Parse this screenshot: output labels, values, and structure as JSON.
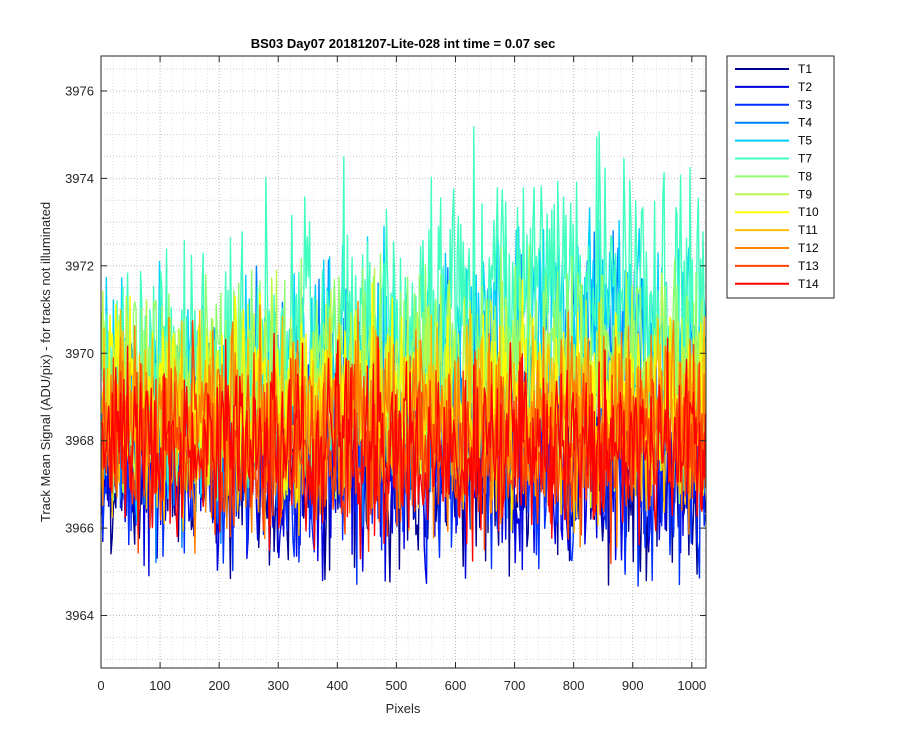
{
  "chart_data": {
    "type": "line",
    "title": "BS03 Day07 20181207-Lite-028 int time = 0.07 sec",
    "xlabel": "Pixels",
    "ylabel": "Track Mean Signal (ADU/pix) - for tracks not illuminated",
    "xlim": [
      0,
      1024
    ],
    "ylim": [
      3962.8,
      3976.8
    ],
    "xticks": [
      0,
      100,
      200,
      300,
      400,
      500,
      600,
      700,
      800,
      900,
      1000
    ],
    "yticks": [
      3964,
      3966,
      3968,
      3970,
      3972,
      3974,
      3976
    ],
    "grid": "major and minor, dotted",
    "legend_position": "outside-right-top",
    "series": [
      {
        "name": "T1",
        "color": "#00008f",
        "mean_profile": {
          "x": [
            0,
            256,
            512,
            768,
            1024
          ],
          "y": [
            3967.4,
            3967.4,
            3967.3,
            3967.2,
            3967.2
          ]
        },
        "noise_amplitude": 1.1
      },
      {
        "name": "T2",
        "color": "#0000df",
        "mean_profile": {
          "x": [
            0,
            256,
            512,
            768,
            1024
          ],
          "y": [
            3967.5,
            3967.5,
            3967.4,
            3967.3,
            3967.3
          ]
        },
        "noise_amplitude": 1.1
      },
      {
        "name": "T3",
        "color": "#0030ff",
        "mean_profile": {
          "x": [
            0,
            256,
            512,
            768,
            1024
          ],
          "y": [
            3967.6,
            3967.6,
            3967.6,
            3967.5,
            3967.5
          ]
        },
        "noise_amplitude": 1.1
      },
      {
        "name": "T4",
        "color": "#0080ff",
        "mean_profile": {
          "x": [
            0,
            256,
            512,
            768,
            1024
          ],
          "y": [
            3968.3,
            3968.8,
            3969.1,
            3969.8,
            3969.5
          ]
        },
        "noise_amplitude": 1.2
      },
      {
        "name": "T5",
        "color": "#00d0ff",
        "mean_profile": {
          "x": [
            0,
            256,
            512,
            768,
            1024
          ],
          "y": [
            3968.6,
            3969.3,
            3969.8,
            3970.7,
            3970.2
          ]
        },
        "noise_amplitude": 1.2
      },
      {
        "name": "T7",
        "color": "#40ffbf",
        "mean_profile": {
          "x": [
            0,
            256,
            512,
            768,
            1024
          ],
          "y": [
            3969.0,
            3969.9,
            3970.6,
            3971.8,
            3971.0
          ]
        },
        "noise_amplitude": 1.5
      },
      {
        "name": "T8",
        "color": "#90ff6f",
        "mean_profile": {
          "x": [
            0,
            256,
            512,
            768,
            1024
          ],
          "y": [
            3968.9,
            3969.3,
            3969.5,
            3969.9,
            3969.5
          ]
        },
        "noise_amplitude": 1.2
      },
      {
        "name": "T9",
        "color": "#b9f94a",
        "mean_profile": {
          "x": [
            0,
            256,
            512,
            768,
            1024
          ],
          "y": [
            3968.8,
            3969.1,
            3969.2,
            3969.4,
            3969.2
          ]
        },
        "noise_amplitude": 1.1
      },
      {
        "name": "T10",
        "color": "#ffff00",
        "mean_profile": {
          "x": [
            0,
            256,
            512,
            768,
            1024
          ],
          "y": [
            3968.7,
            3968.9,
            3968.9,
            3969.0,
            3968.8
          ]
        },
        "noise_amplitude": 1.1
      },
      {
        "name": "T11",
        "color": "#ffbf00",
        "mean_profile": {
          "x": [
            0,
            256,
            512,
            768,
            1024
          ],
          "y": [
            3968.5,
            3968.5,
            3968.5,
            3968.5,
            3968.4
          ]
        },
        "noise_amplitude": 1.1
      },
      {
        "name": "T12",
        "color": "#ff8000",
        "mean_profile": {
          "x": [
            0,
            256,
            512,
            768,
            1024
          ],
          "y": [
            3968.3,
            3968.3,
            3968.2,
            3968.2,
            3968.1
          ]
        },
        "noise_amplitude": 1.1
      },
      {
        "name": "T13",
        "color": "#ff4000",
        "mean_profile": {
          "x": [
            0,
            256,
            512,
            768,
            1024
          ],
          "y": [
            3968.1,
            3968.0,
            3967.9,
            3967.9,
            3967.8
          ]
        },
        "noise_amplitude": 1.0
      },
      {
        "name": "T14",
        "color": "#ff0000",
        "mean_profile": {
          "x": [
            0,
            256,
            512,
            768,
            1024
          ],
          "y": [
            3968.0,
            3967.9,
            3967.8,
            3967.8,
            3967.7
          ]
        },
        "noise_amplitude": 1.0
      }
    ]
  }
}
